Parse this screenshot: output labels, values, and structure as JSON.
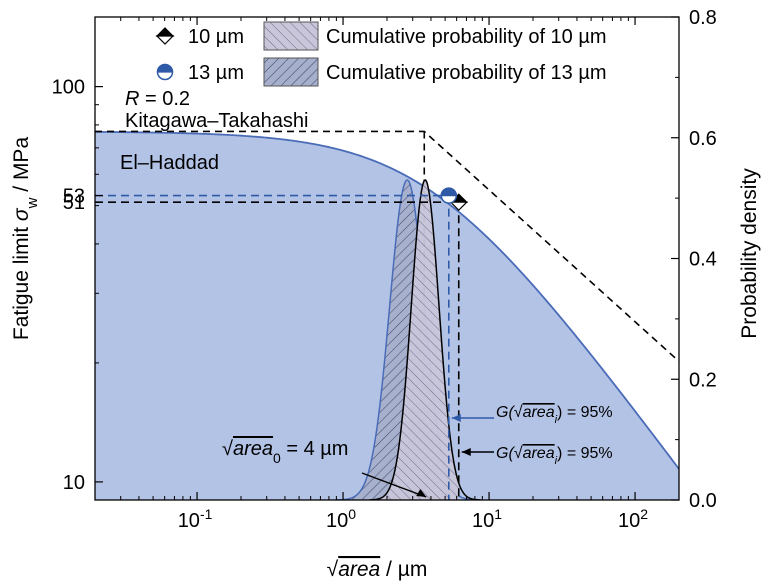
{
  "chart_data": {
    "type": "line",
    "x_axis": {
      "scale": "log",
      "range": [
        0.02,
        200
      ],
      "ticks": [
        0.1,
        1,
        10,
        100
      ],
      "tick_labels": [
        {
          "base": "10",
          "exp": "-1"
        },
        {
          "base": "10",
          "exp": "0"
        },
        {
          "base": "10",
          "exp": "1"
        },
        {
          "base": "10",
          "exp": "2"
        }
      ],
      "label_sqrt": "area",
      "label_unit": " / µm"
    },
    "y_left": {
      "scale": "log",
      "range": [
        9,
        150
      ],
      "ticks": [
        10,
        100
      ],
      "tick_labels": [
        "10",
        "100"
      ],
      "label_main": "Fatigue limit ",
      "label_symbol": "σ",
      "label_sub": "w",
      "label_unit": " / MPa"
    },
    "y_right": {
      "scale": "linear",
      "range": [
        0,
        0.8
      ],
      "ticks": [
        0.0,
        0.2,
        0.4,
        0.6,
        0.8
      ],
      "tick_labels": [
        "0.0",
        "0.2",
        "0.4",
        "0.6",
        "0.8"
      ],
      "label": "Probability density"
    },
    "ref_levels": [
      {
        "value": 53,
        "label": "53",
        "color": "#2e5aa8"
      },
      {
        "value": 51,
        "label": "51",
        "color": "#000000"
      }
    ],
    "models": {
      "kitagawa": {
        "label": "Kitagawa–Takahashi",
        "plateau": 77,
        "knee": 3.6
      },
      "el_haddad": {
        "label": "El–Haddad",
        "sigma0": 77,
        "area0": 4,
        "fill": "#b3c3e6",
        "line": "#4a6cb8"
      }
    },
    "stress_ratio": {
      "symbol": "R",
      "value": " = 0.2"
    },
    "series": [
      {
        "name": "10 µm",
        "cum_label": "Cumulative probability of 10 µm",
        "peak_x": 3.65,
        "peak": 0.53,
        "sigma_log": 0.095,
        "g95_x": 6.2,
        "marker_x": 6.2,
        "marker_y": 51,
        "color": "#000000"
      },
      {
        "name": "13 µm",
        "cum_label": "Cumulative probability of 13 µm",
        "peak_x": 2.75,
        "peak": 0.53,
        "sigma_log": 0.12,
        "g95_x": 5.3,
        "marker_x": 5.3,
        "marker_y": 53,
        "color": "#2e5aa8"
      }
    ],
    "annotations": {
      "area0_sqrt": "area",
      "area0_sub": "0",
      "area0_value": " = 4 µm",
      "g_prefix": "G(",
      "g_sqrt": "area",
      "g_sub": "i",
      "g_suffix": ") = 95%"
    },
    "colors": {
      "blue": "#2e5aa8",
      "fill": "#b3c3e6",
      "black": "#000000"
    }
  }
}
